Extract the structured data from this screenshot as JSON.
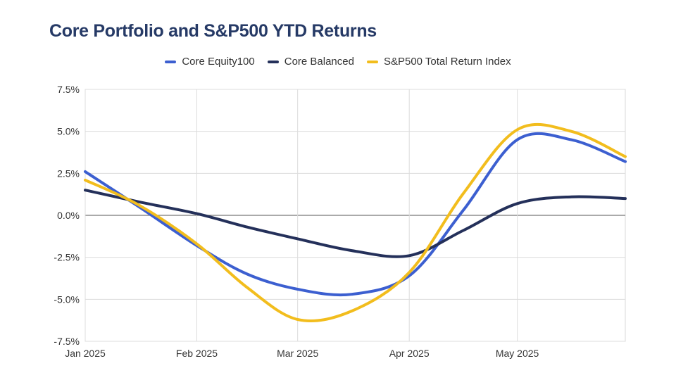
{
  "chart_data": {
    "type": "line",
    "title": "Core Portfolio and S&P500 YTD Returns",
    "xlabel": "",
    "ylabel": "",
    "x": [
      "2025-01-01",
      "2025-01-16",
      "2025-02-01",
      "2025-02-15",
      "2025-03-01",
      "2025-03-16",
      "2025-04-01",
      "2025-04-16",
      "2025-05-01",
      "2025-05-16",
      "2025-05-31"
    ],
    "x_ticks": [
      {
        "x": "2025-01-01",
        "label": "Jan 2025"
      },
      {
        "x": "2025-02-01",
        "label": "Feb 2025"
      },
      {
        "x": "2025-03-01",
        "label": "Mar 2025"
      },
      {
        "x": "2025-04-01",
        "label": "Apr 2025"
      },
      {
        "x": "2025-05-01",
        "label": "May 2025"
      }
    ],
    "xlim": [
      "2025-01-01",
      "2025-05-31"
    ],
    "ylim": [
      -7.5,
      7.5
    ],
    "y_ticks": [
      {
        "value": 7.5,
        "label": "7.5%"
      },
      {
        "value": 5.0,
        "label": "5.0%"
      },
      {
        "value": 2.5,
        "label": "2.5%"
      },
      {
        "value": 0.0,
        "label": "0.0%"
      },
      {
        "value": -2.5,
        "label": "-2.5%"
      },
      {
        "value": -5.0,
        "label": "-5.0%"
      },
      {
        "value": -7.5,
        "label": "-7.5%"
      }
    ],
    "grid": true,
    "legend_position": "top-center",
    "series": [
      {
        "name": "Core Equity100",
        "color": "#3c5fd0",
        "values": [
          2.6,
          0.5,
          -1.8,
          -3.5,
          -4.4,
          -4.7,
          -3.6,
          0.3,
          4.5,
          4.5,
          3.2
        ]
      },
      {
        "name": "Core Balanced",
        "color": "#24305a",
        "values": [
          1.5,
          0.8,
          0.1,
          -0.7,
          -1.4,
          -2.1,
          -2.4,
          -0.9,
          0.7,
          1.1,
          1.0
        ]
      },
      {
        "name": "S&P500 Total Return Index",
        "color": "#f2bd1d",
        "values": [
          2.1,
          0.6,
          -1.7,
          -4.3,
          -6.2,
          -5.7,
          -3.4,
          1.3,
          5.1,
          5.0,
          3.5
        ]
      }
    ]
  }
}
